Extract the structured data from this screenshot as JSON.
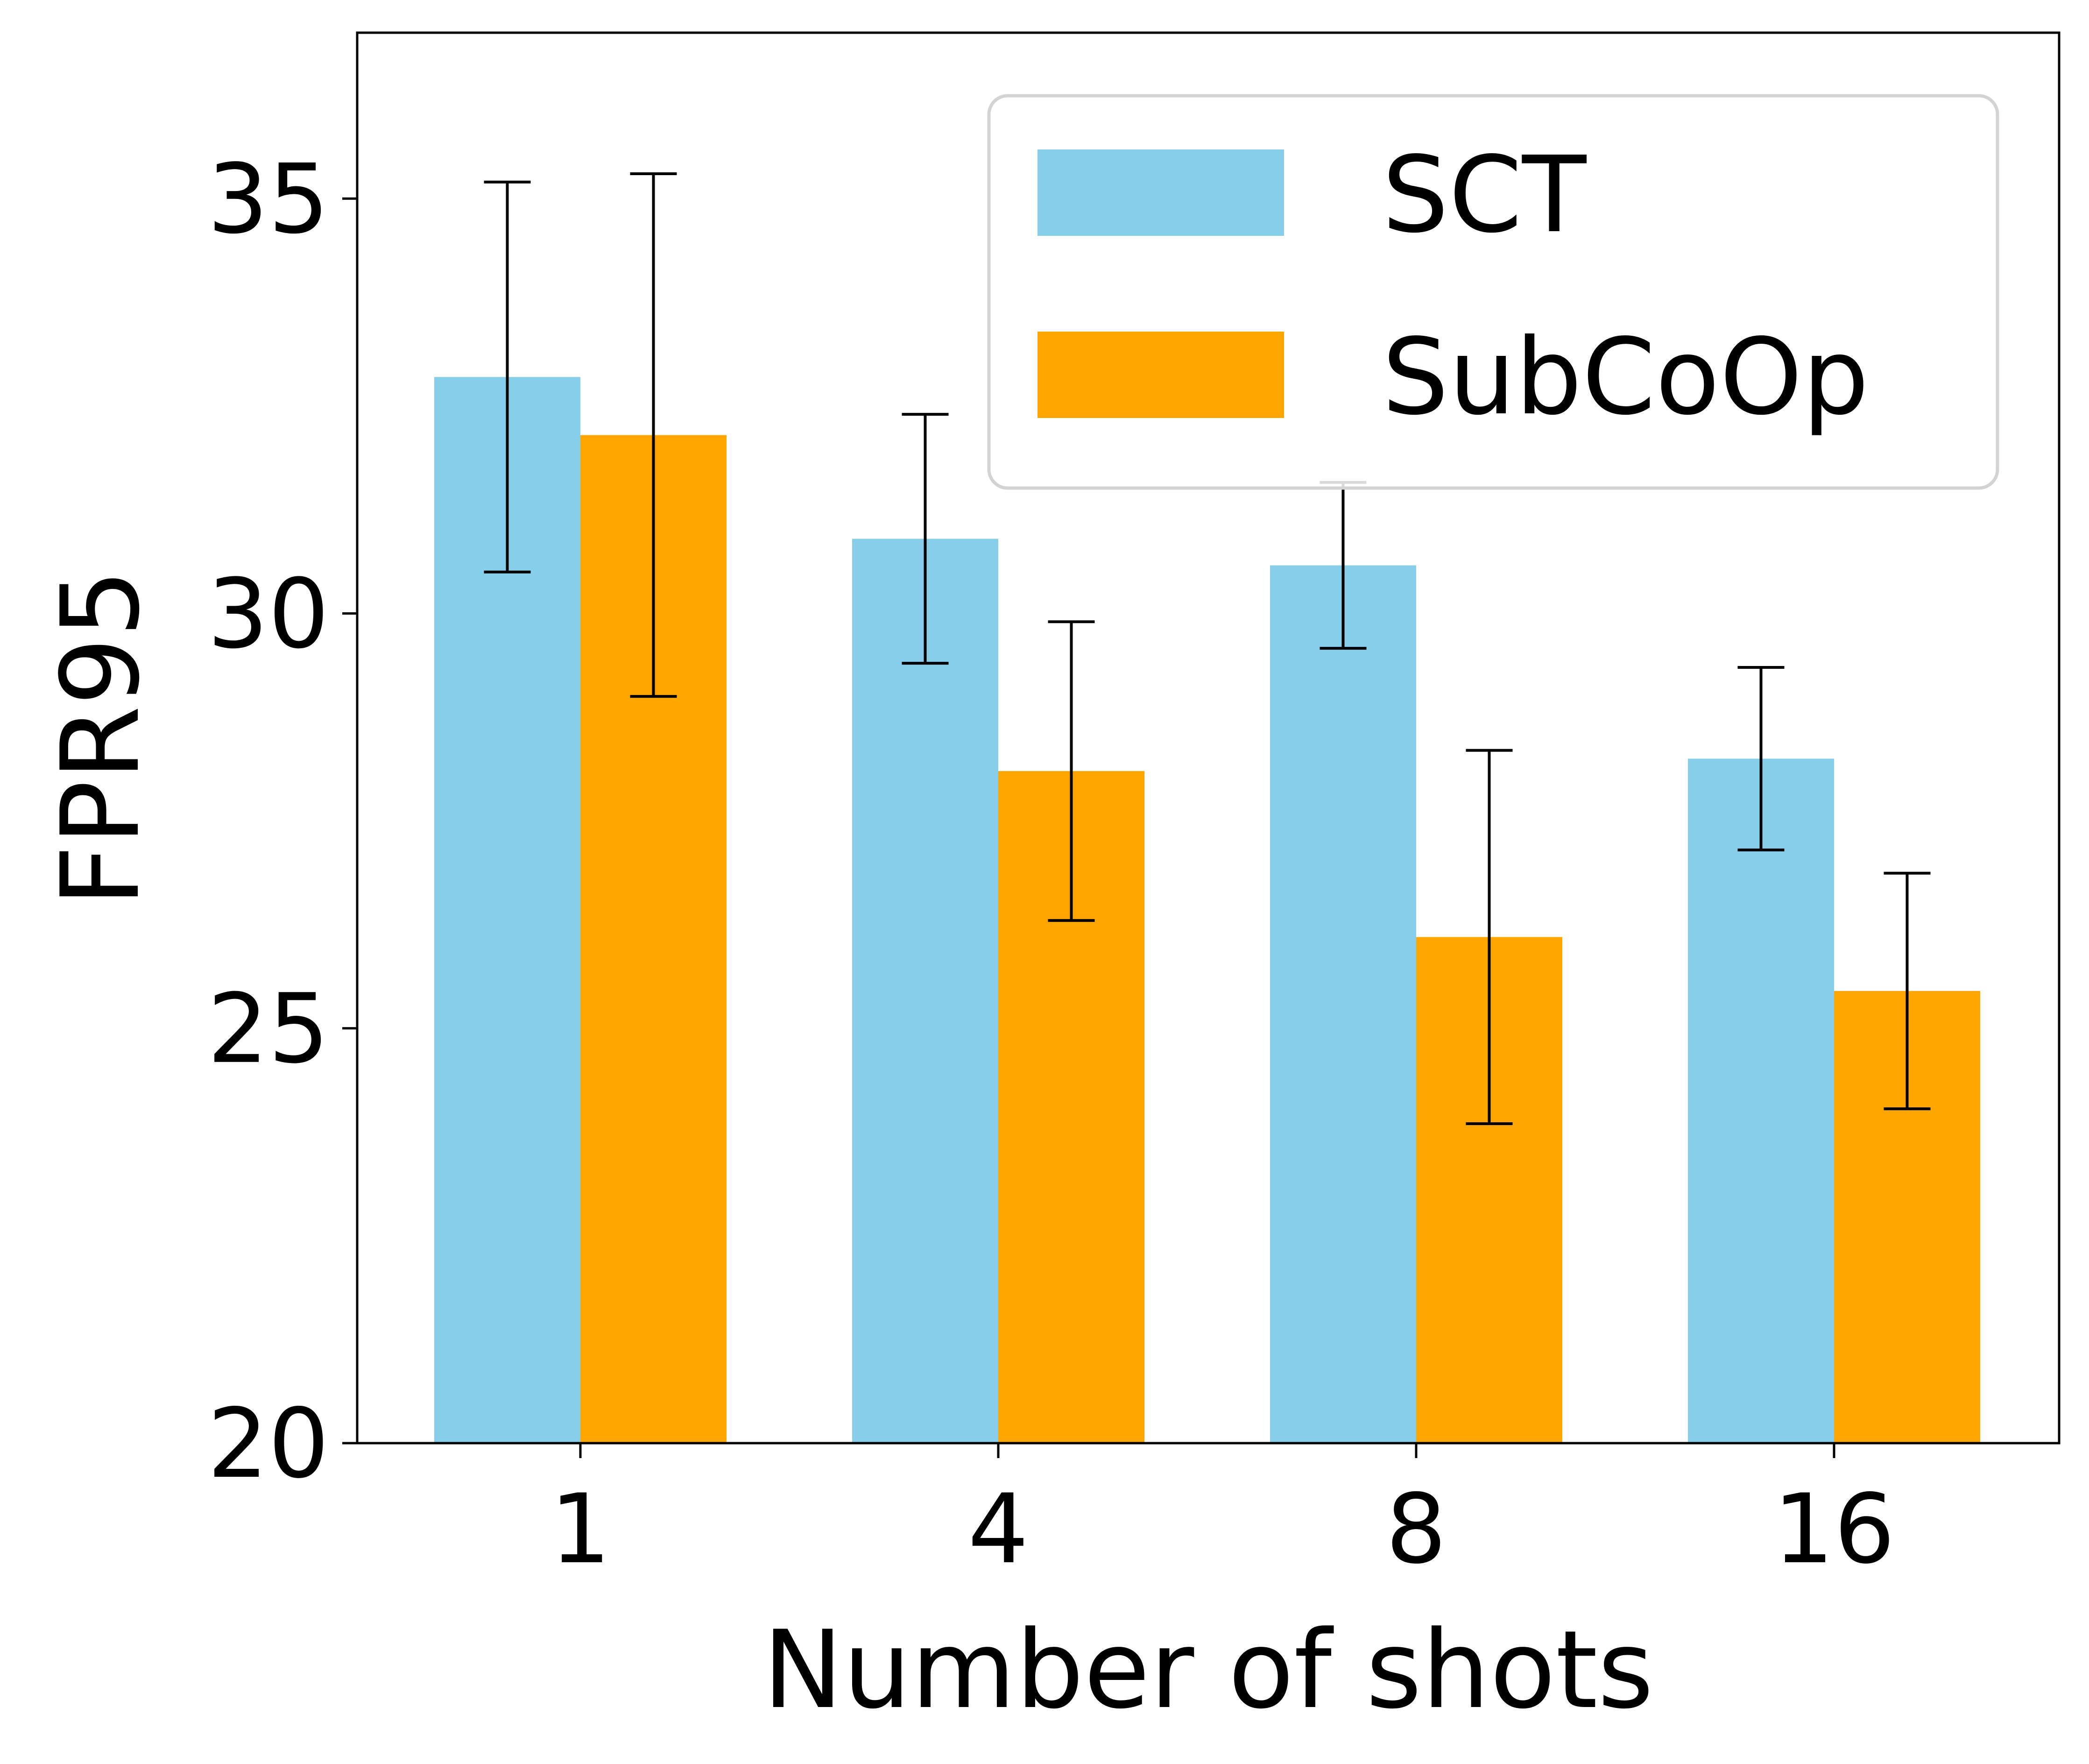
{
  "chart_data": {
    "type": "bar",
    "title": "",
    "xlabel": "Number of shots",
    "ylabel": "FPR95",
    "categories": [
      "1",
      "4",
      "8",
      "16"
    ],
    "ylim": [
      20,
      37
    ],
    "yticks": [
      "20",
      "25",
      "30",
      "35"
    ],
    "grid": false,
    "legend_position": "top-right",
    "series": [
      {
        "name": "SCT",
        "color": "#87CEEB",
        "values": [
          32.85,
          30.9,
          30.58,
          28.25
        ],
        "errors": [
          2.35,
          1.5,
          1.0,
          1.1
        ]
      },
      {
        "name": "SubCoOp",
        "color": "#FFA500",
        "values": [
          32.15,
          28.1,
          26.1,
          25.45
        ],
        "errors": [
          3.15,
          1.8,
          2.25,
          1.42
        ]
      }
    ]
  }
}
